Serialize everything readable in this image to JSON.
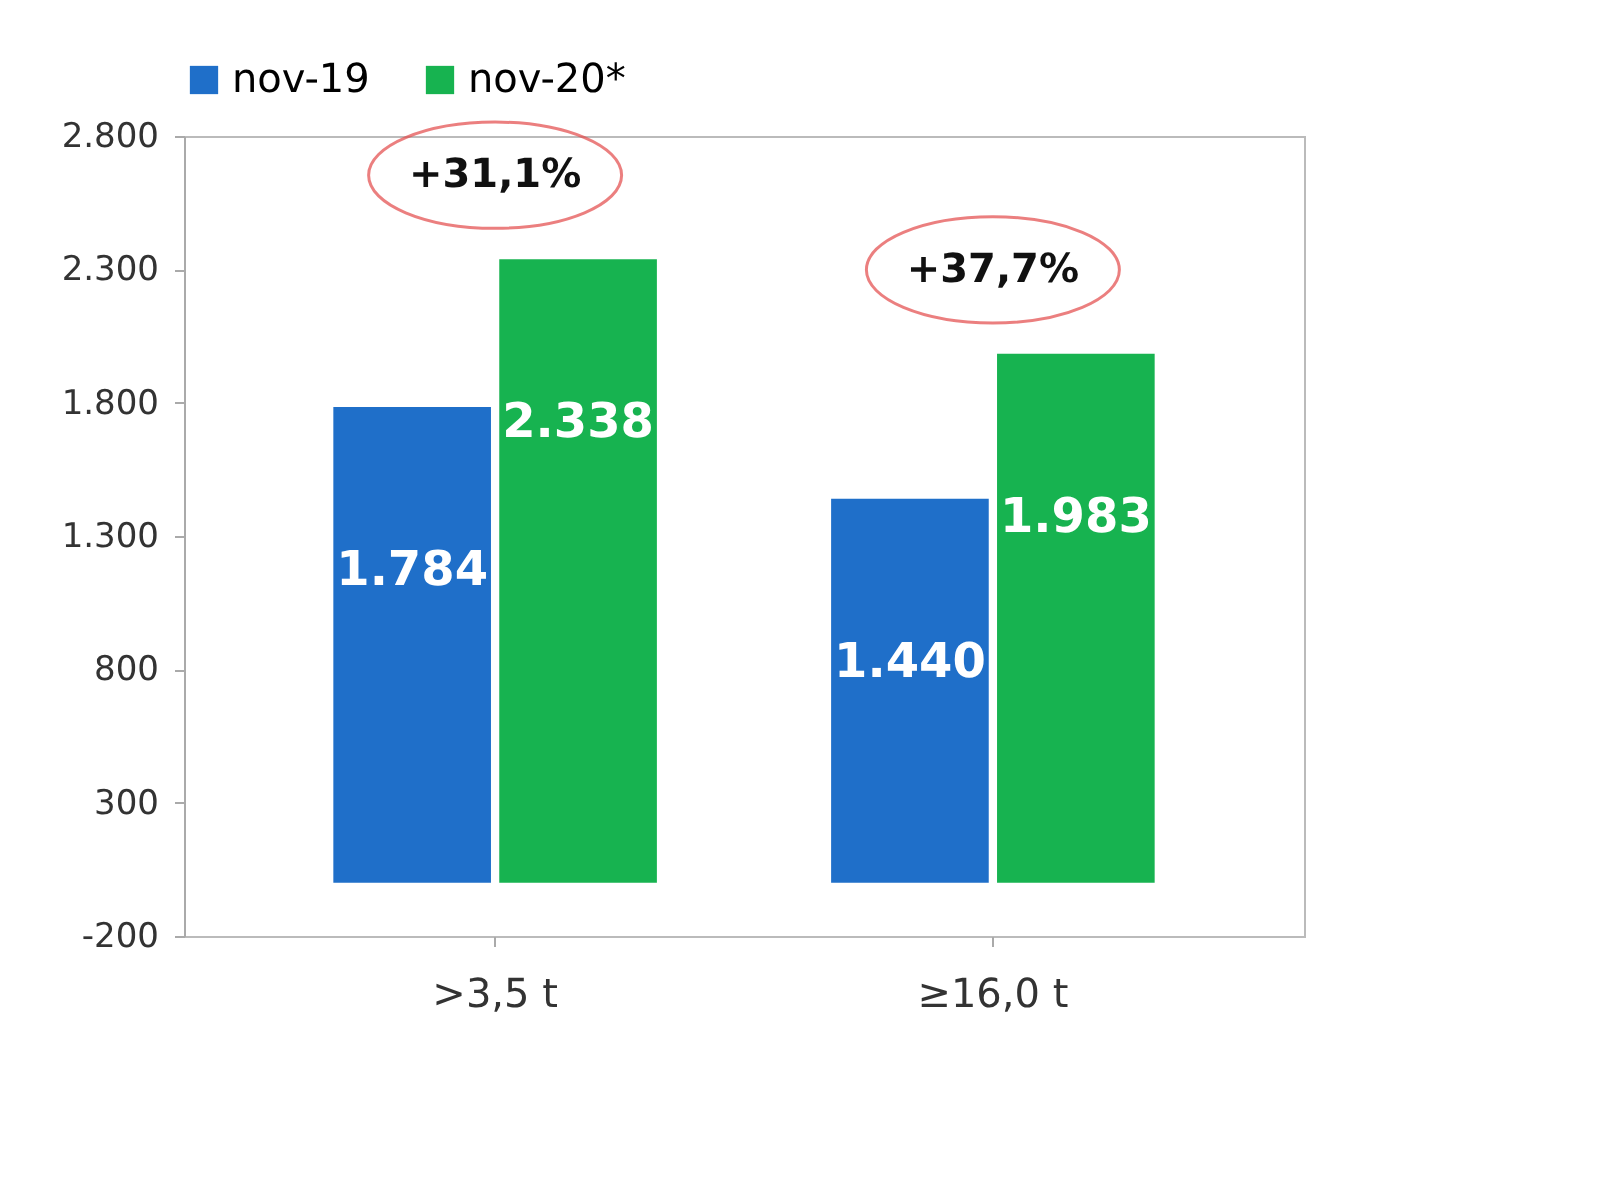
{
  "chart_data": {
    "type": "bar",
    "categories": [
      ">3,5 t",
      "≥16,0 t"
    ],
    "series": [
      {
        "name": "nov-19",
        "color": "#1f6fc9",
        "values": [
          1784,
          1440
        ],
        "value_labels": [
          "1.784",
          "1.440"
        ]
      },
      {
        "name": "nov-20*",
        "color": "#17b350",
        "values": [
          2338,
          1983
        ],
        "value_labels": [
          "2.338",
          "1.983"
        ]
      }
    ],
    "ylim": [
      -200,
      2800
    ],
    "yticks": [
      {
        "value": -200,
        "label": "-200"
      },
      {
        "value": 300,
        "label": "300"
      },
      {
        "value": 800,
        "label": "800"
      },
      {
        "value": 1300,
        "label": "1.300"
      },
      {
        "value": 1800,
        "label": "1.800"
      },
      {
        "value": 2300,
        "label": "2.300"
      },
      {
        "value": 2800,
        "label": "2.800"
      }
    ],
    "annotations": [
      "+31,1%",
      "+37,7%"
    ],
    "legend": "top",
    "grid": false
  }
}
